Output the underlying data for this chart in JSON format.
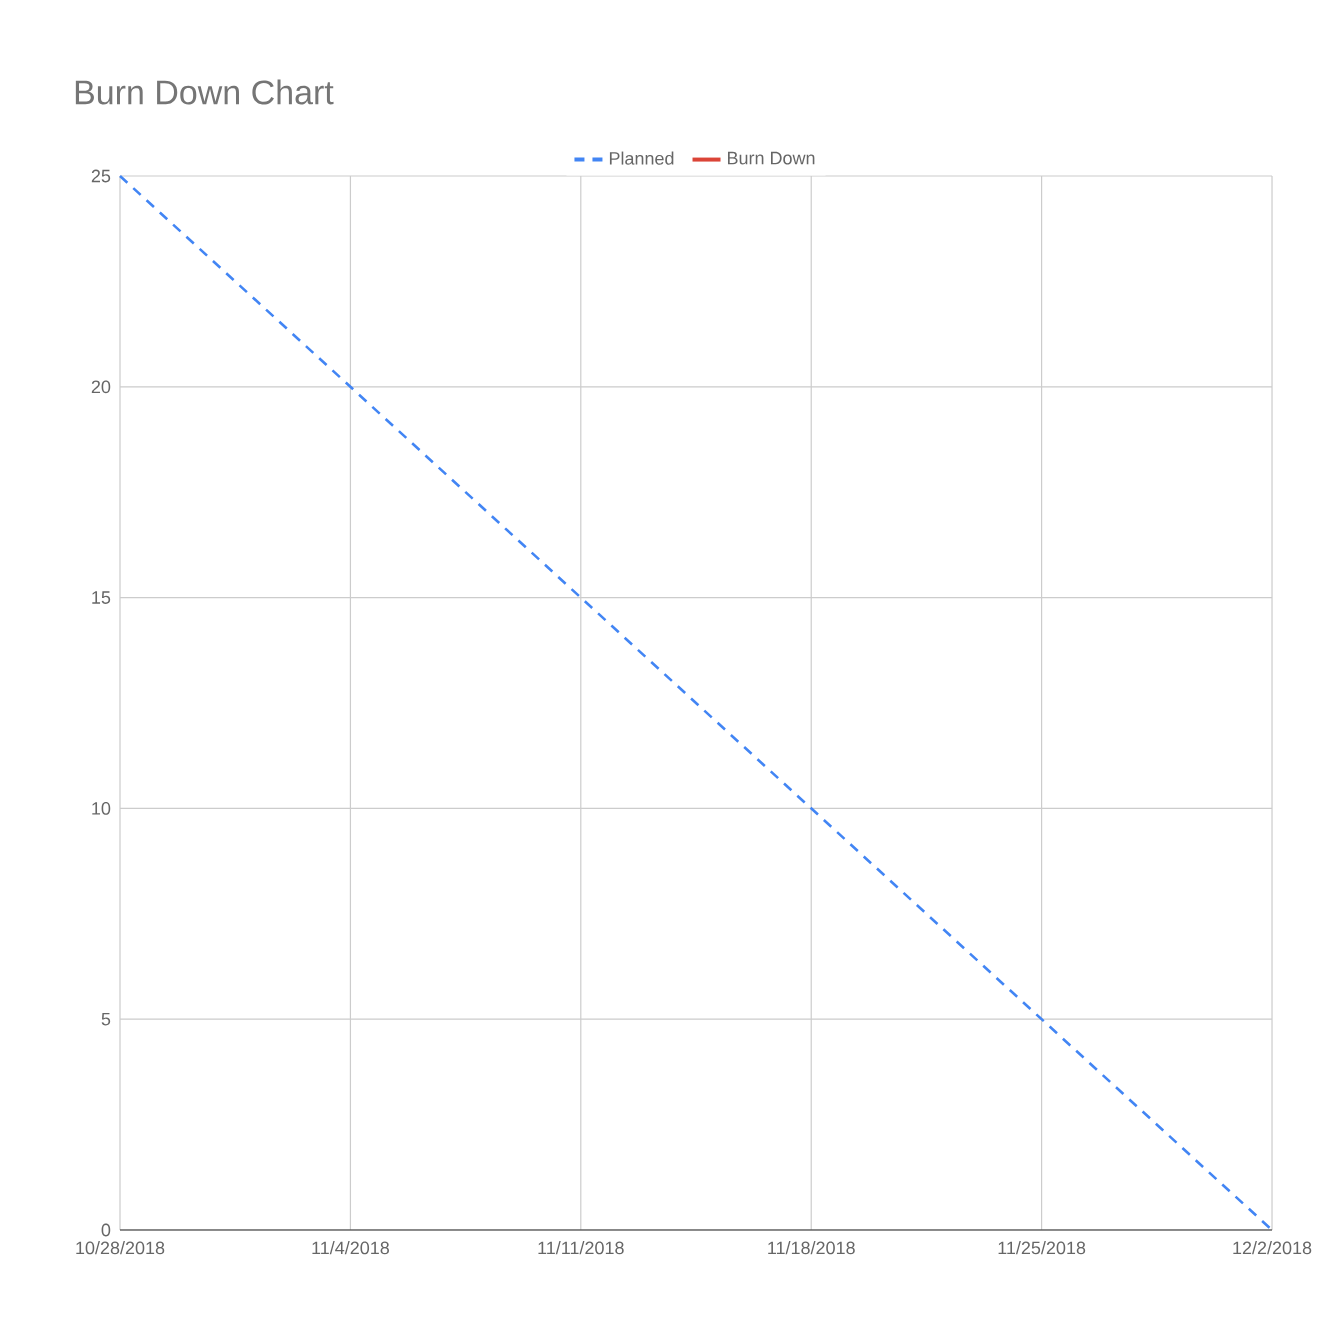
{
  "chart_data": {
    "type": "line",
    "title": "Burn Down Chart",
    "x": [
      "2018-10-28",
      "2018-12-02"
    ],
    "series": [
      {
        "name": "Planned",
        "color": "#4285f4",
        "values": [
          25,
          0
        ],
        "line_style": "dashed"
      },
      {
        "name": "Burn Down",
        "color": "#db4437",
        "values": [
          null,
          null
        ],
        "line_style": "solid"
      }
    ],
    "xlim": [
      "2018-10-28",
      "2018-12-02"
    ],
    "xticks": [
      {
        "value": "2018-10-28",
        "label": "10/28/2018"
      },
      {
        "value": "2018-11-04",
        "label": "11/4/2018"
      },
      {
        "value": "2018-11-11",
        "label": "11/11/2018"
      },
      {
        "value": "2018-11-18",
        "label": "11/18/2018"
      },
      {
        "value": "2018-11-25",
        "label": "11/25/2018"
      },
      {
        "value": "2018-12-02",
        "label": "12/2/2018"
      }
    ],
    "ylim": [
      0,
      25
    ],
    "yticks": [
      0,
      5,
      10,
      15,
      20,
      25
    ],
    "grid": true,
    "legend": "top",
    "marker": "none"
  }
}
